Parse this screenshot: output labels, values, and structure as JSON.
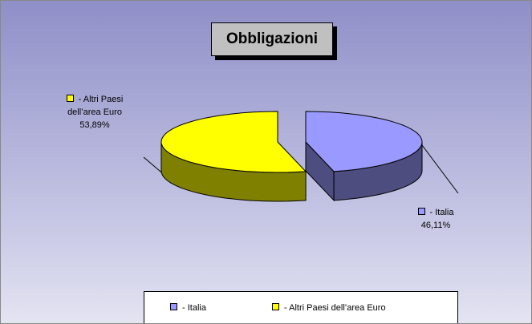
{
  "chart_data": {
    "type": "pie3d",
    "title": "Obbligazioni",
    "categories": [
      "- Italia",
      "- Altri Paesi dell’area Euro"
    ],
    "values": [
      46.11,
      53.89
    ],
    "value_labels": [
      "46,11%",
      "53,89%"
    ],
    "colors": [
      "#9999ff",
      "#ffff00"
    ],
    "side_colors": [
      "#4d4d80",
      "#808000"
    ]
  }
}
